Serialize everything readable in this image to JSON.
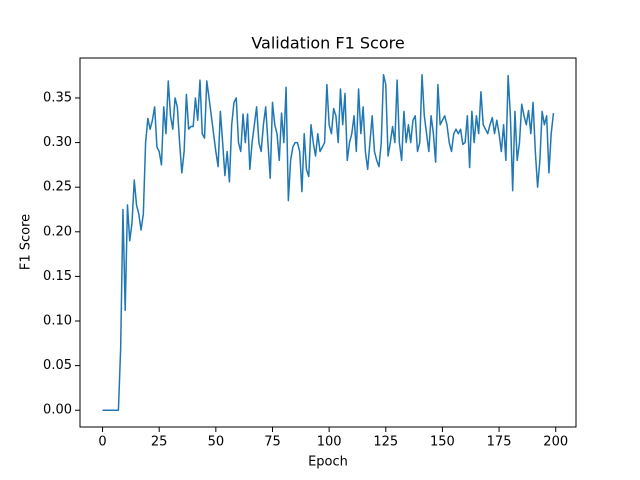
{
  "chart_data": {
    "type": "line",
    "title": "Validation F1 Score",
    "x_label": "Epoch",
    "y_label": "F1 Score",
    "x": [
      0,
      1,
      2,
      3,
      4,
      5,
      6,
      7,
      8,
      9,
      10,
      11,
      12,
      13,
      14,
      15,
      16,
      17,
      18,
      19,
      20,
      21,
      22,
      23,
      24,
      25,
      26,
      27,
      28,
      29,
      30,
      31,
      32,
      33,
      34,
      35,
      36,
      37,
      38,
      39,
      40,
      41,
      42,
      43,
      44,
      45,
      46,
      47,
      48,
      49,
      50,
      51,
      52,
      53,
      54,
      55,
      56,
      57,
      58,
      59,
      60,
      61,
      62,
      63,
      64,
      65,
      66,
      67,
      68,
      69,
      70,
      71,
      72,
      73,
      74,
      75,
      76,
      77,
      78,
      79,
      80,
      81,
      82,
      83,
      84,
      85,
      86,
      87,
      88,
      89,
      90,
      91,
      92,
      93,
      94,
      95,
      96,
      97,
      98,
      99,
      100,
      101,
      102,
      103,
      104,
      105,
      106,
      107,
      108,
      109,
      110,
      111,
      112,
      113,
      114,
      115,
      116,
      117,
      118,
      119,
      120,
      121,
      122,
      123,
      124,
      125,
      126,
      127,
      128,
      129,
      130,
      131,
      132,
      133,
      134,
      135,
      136,
      137,
      138,
      139,
      140,
      141,
      142,
      143,
      144,
      145,
      146,
      147,
      148,
      149,
      150,
      151,
      152,
      153,
      154,
      155,
      156,
      157,
      158,
      159,
      160,
      161,
      162,
      163,
      164,
      165,
      166,
      167,
      168,
      169,
      170,
      171,
      172,
      173,
      174,
      175,
      176,
      177,
      178,
      179,
      180,
      181,
      182,
      183,
      184,
      185,
      186,
      187,
      188,
      189,
      190,
      191,
      192,
      193,
      194,
      195,
      196,
      197,
      198,
      199
    ],
    "series": [
      {
        "name": "F1 Score",
        "color": "#1f77b4",
        "values": [
          0,
          0,
          0,
          0,
          0,
          0,
          0,
          0,
          0.07,
          0.225,
          0.112,
          0.23,
          0.19,
          0.21,
          0.258,
          0.23,
          0.22,
          0.202,
          0.22,
          0.3,
          0.327,
          0.315,
          0.325,
          0.34,
          0.295,
          0.29,
          0.275,
          0.34,
          0.31,
          0.369,
          0.33,
          0.315,
          0.35,
          0.34,
          0.3,
          0.266,
          0.29,
          0.354,
          0.315,
          0.318,
          0.318,
          0.35,
          0.325,
          0.37,
          0.31,
          0.305,
          0.369,
          0.35,
          0.33,
          0.31,
          0.29,
          0.273,
          0.335,
          0.3,
          0.263,
          0.29,
          0.256,
          0.32,
          0.345,
          0.35,
          0.3,
          0.29,
          0.332,
          0.3,
          0.332,
          0.27,
          0.3,
          0.32,
          0.34,
          0.3,
          0.29,
          0.32,
          0.34,
          0.3,
          0.26,
          0.345,
          0.32,
          0.31,
          0.28,
          0.333,
          0.3,
          0.362,
          0.235,
          0.28,
          0.295,
          0.3,
          0.3,
          0.29,
          0.245,
          0.31,
          0.27,
          0.262,
          0.32,
          0.3,
          0.285,
          0.31,
          0.29,
          0.295,
          0.3,
          0.365,
          0.32,
          0.31,
          0.338,
          0.33,
          0.3,
          0.36,
          0.32,
          0.355,
          0.28,
          0.3,
          0.31,
          0.33,
          0.29,
          0.36,
          0.31,
          0.34,
          0.29,
          0.27,
          0.3,
          0.33,
          0.29,
          0.28,
          0.273,
          0.3,
          0.376,
          0.365,
          0.285,
          0.3,
          0.318,
          0.3,
          0.37,
          0.3,
          0.28,
          0.335,
          0.3,
          0.32,
          0.3,
          0.325,
          0.33,
          0.29,
          0.3,
          0.376,
          0.33,
          0.31,
          0.29,
          0.33,
          0.31,
          0.278,
          0.365,
          0.32,
          0.325,
          0.33,
          0.32,
          0.3,
          0.29,
          0.31,
          0.315,
          0.31,
          0.315,
          0.298,
          0.3,
          0.33,
          0.272,
          0.335,
          0.3,
          0.33,
          0.31,
          0.357,
          0.32,
          0.315,
          0.31,
          0.32,
          0.328,
          0.31,
          0.325,
          0.31,
          0.29,
          0.32,
          0.28,
          0.375,
          0.33,
          0.246,
          0.335,
          0.28,
          0.3,
          0.343,
          0.33,
          0.32,
          0.336,
          0.31,
          0.345,
          0.29,
          0.25,
          0.28,
          0.335,
          0.32,
          0.33,
          0.266,
          0.31,
          0.333
        ]
      }
    ],
    "xlim": [
      -9.95,
      208.95
    ],
    "ylim": [
      -0.0188,
      0.3948
    ],
    "xticks": [
      0,
      25,
      50,
      75,
      100,
      125,
      150,
      175,
      200
    ],
    "yticks": [
      {
        "value": 0,
        "label": "0.00"
      },
      {
        "value": 0.05,
        "label": "0.05"
      },
      {
        "value": 0.1,
        "label": "0.10"
      },
      {
        "value": 0.15,
        "label": "0.15"
      },
      {
        "value": 0.2,
        "label": "0.20"
      },
      {
        "value": 0.25,
        "label": "0.25"
      },
      {
        "value": 0.3,
        "label": "0.30"
      },
      {
        "value": 0.35,
        "label": "0.35"
      }
    ],
    "grid": false
  }
}
